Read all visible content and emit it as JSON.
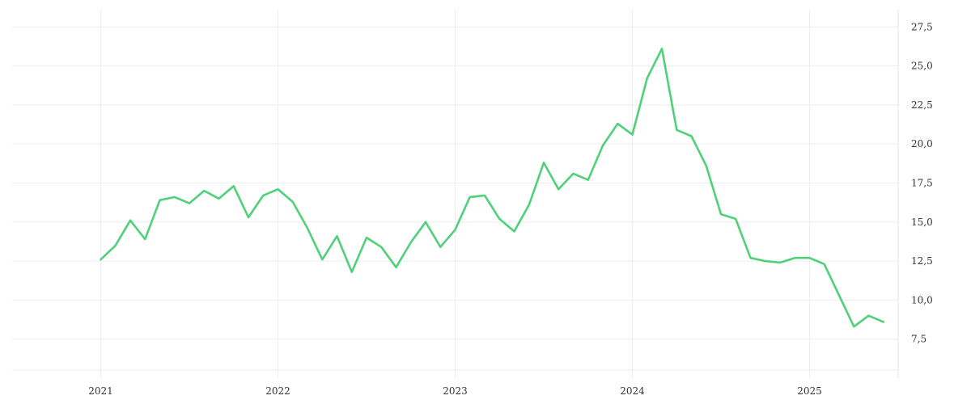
{
  "chart_data": {
    "type": "line",
    "title": "",
    "xlabel": "",
    "ylabel": "",
    "x_ticks": [
      "2021",
      "2022",
      "2023",
      "2024",
      "2025"
    ],
    "y_ticks": [
      "7,5",
      "10,0",
      "12,5",
      "15,0",
      "17,5",
      "20,0",
      "22,5",
      "25,0",
      "27,5"
    ],
    "y_tick_values": [
      7.5,
      10.0,
      12.5,
      15.0,
      17.5,
      20.0,
      22.5,
      25.0,
      27.5
    ],
    "ylim": [
      5.0,
      28.6
    ],
    "xlim": [
      "2020-07",
      "2025-07"
    ],
    "y_axis_position": "right",
    "grid": true,
    "legend": "none",
    "color": "#4fd17a",
    "series": [
      {
        "x": [
          "2021-01",
          "2021-02",
          "2021-03",
          "2021-04",
          "2021-05",
          "2021-06",
          "2021-07",
          "2021-08",
          "2021-09",
          "2021-10",
          "2021-11",
          "2021-12",
          "2022-01",
          "2022-02",
          "2022-03",
          "2022-04",
          "2022-05",
          "2022-06",
          "2022-07",
          "2022-08",
          "2022-09",
          "2022-10",
          "2022-11",
          "2022-12",
          "2023-01",
          "2023-02",
          "2023-03",
          "2023-04",
          "2023-05",
          "2023-06",
          "2023-07",
          "2023-08",
          "2023-09",
          "2023-10",
          "2023-11",
          "2023-12",
          "2024-01",
          "2024-02",
          "2024-03",
          "2024-04",
          "2024-05",
          "2024-06",
          "2024-07",
          "2024-08",
          "2024-09",
          "2024-10",
          "2024-11",
          "2024-12",
          "2025-01",
          "2025-02",
          "2025-03",
          "2025-04",
          "2025-05",
          "2025-06"
        ],
        "values": [
          12.6,
          13.5,
          15.1,
          13.9,
          16.4,
          16.6,
          16.2,
          17.0,
          16.5,
          17.3,
          15.3,
          16.7,
          17.1,
          16.3,
          14.6,
          12.6,
          14.1,
          11.8,
          14.0,
          13.4,
          12.1,
          13.7,
          15.0,
          13.4,
          14.5,
          16.6,
          16.7,
          15.2,
          14.4,
          16.1,
          18.8,
          17.1,
          18.1,
          17.7,
          19.9,
          21.3,
          20.6,
          24.2,
          26.1,
          20.9,
          20.5,
          18.6,
          15.5,
          15.2,
          12.7,
          12.5,
          12.4,
          12.7,
          12.7,
          12.3,
          10.3,
          8.3,
          9.0,
          8.6
        ]
      }
    ]
  }
}
